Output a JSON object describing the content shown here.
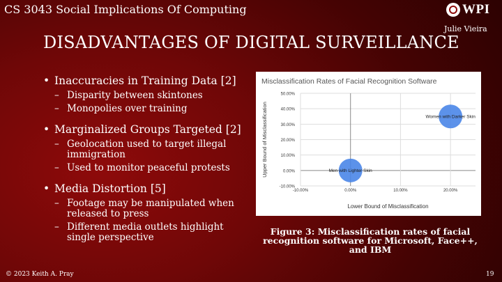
{
  "header": {
    "course": "CS 3043 Social Implications Of Computing",
    "logo_text": "WPI",
    "author": "Julie Vieira"
  },
  "slide": {
    "title": "DISADVANTAGES OF DIGITAL SURVEILLANCE",
    "bullets": [
      {
        "text": "Inaccuracies in Training Data [2]",
        "subs": [
          "Disparity between skintones",
          "Monopolies over training"
        ]
      },
      {
        "text": "Marginalized Groups Targeted [2]",
        "subs": [
          "Geolocation used to target illegal immigration",
          "Used to monitor peaceful protests"
        ]
      },
      {
        "text": "Media Distortion [5]",
        "subs": [
          "Footage may be manipulated when released to press",
          "Different media outlets highlight single perspective"
        ]
      }
    ],
    "caption": "Figure 3: Misclassification rates of facial recognition software for Microsoft, Face++, and IBM"
  },
  "footer": {
    "copyright": "© 2023 Keith A. Pray",
    "page": "19"
  },
  "chart_data": {
    "type": "scatter",
    "title": "Misclassification Rates of Facial Recognition Software",
    "xlabel": "Lower Bound of Misclassification",
    "ylabel": "Upper Bound of Misclassification",
    "xlim": [
      -0.1,
      0.25
    ],
    "ylim": [
      -0.1,
      0.5
    ],
    "xticks": [
      "-10.00%",
      "0.00%",
      "10.00%",
      "20.00%"
    ],
    "yticks": [
      "-10.00%",
      "0.00%",
      "10.00%",
      "20.00%",
      "30.00%",
      "40.00%",
      "50.00%"
    ],
    "grid": true,
    "color": "#4a86e8",
    "points": [
      {
        "label": "Men with Lighter Skin",
        "x": 0.0,
        "y": 0.0
      },
      {
        "label": "Women with Darker Skin",
        "x": 0.2,
        "y": 0.35
      }
    ]
  }
}
